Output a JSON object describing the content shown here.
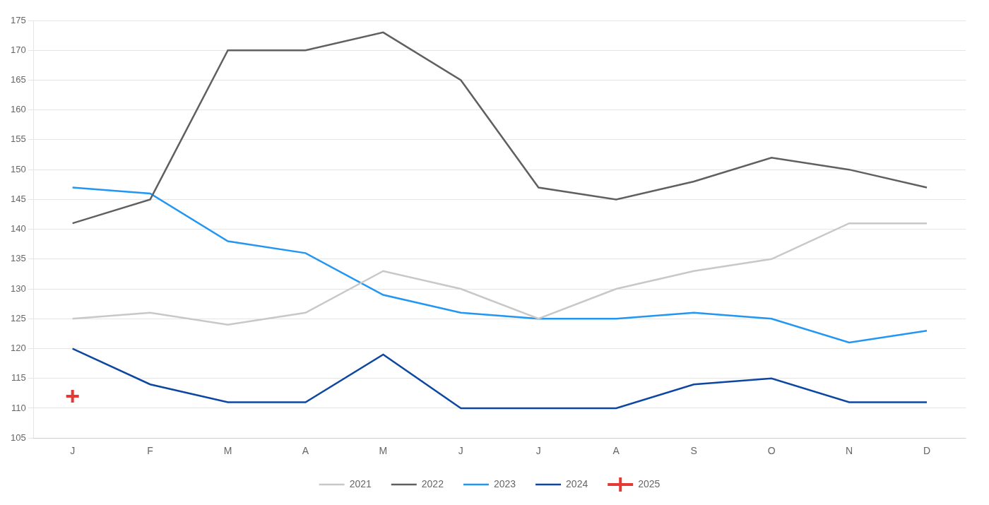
{
  "chart_data": {
    "type": "line",
    "categories": [
      "J",
      "F",
      "M",
      "A",
      "M",
      "J",
      "J",
      "A",
      "S",
      "O",
      "N",
      "D"
    ],
    "series": [
      {
        "name": "2021",
        "color": "#c8c8c8",
        "marker": "none",
        "line_style": "solid",
        "values": [
          125,
          126,
          124,
          126,
          133,
          130,
          125,
          130,
          133,
          135,
          141,
          141
        ]
      },
      {
        "name": "2022",
        "color": "#606060",
        "marker": "none",
        "line_style": "solid",
        "values": [
          141,
          145,
          170,
          170,
          173,
          165,
          147,
          145,
          148,
          152,
          150,
          147
        ]
      },
      {
        "name": "2023",
        "color": "#2196f3",
        "marker": "none",
        "line_style": "solid",
        "values": [
          147,
          146,
          138,
          136,
          129,
          126,
          125,
          125,
          126,
          125,
          121,
          123
        ]
      },
      {
        "name": "2024",
        "color": "#0d47a1",
        "marker": "none",
        "line_style": "solid",
        "values": [
          120,
          114,
          111,
          111,
          119,
          110,
          110,
          110,
          114,
          115,
          111,
          111
        ]
      },
      {
        "name": "2025",
        "color": "#e53935",
        "marker": "cross",
        "line_style": "none",
        "values": [
          112,
          null,
          null,
          null,
          null,
          null,
          null,
          null,
          null,
          null,
          null,
          null
        ]
      }
    ],
    "ylim": [
      105,
      175
    ],
    "yticks": [
      105,
      110,
      115,
      120,
      125,
      130,
      135,
      140,
      145,
      150,
      155,
      160,
      165,
      170,
      175
    ],
    "grid": true,
    "legend": "bottom"
  }
}
